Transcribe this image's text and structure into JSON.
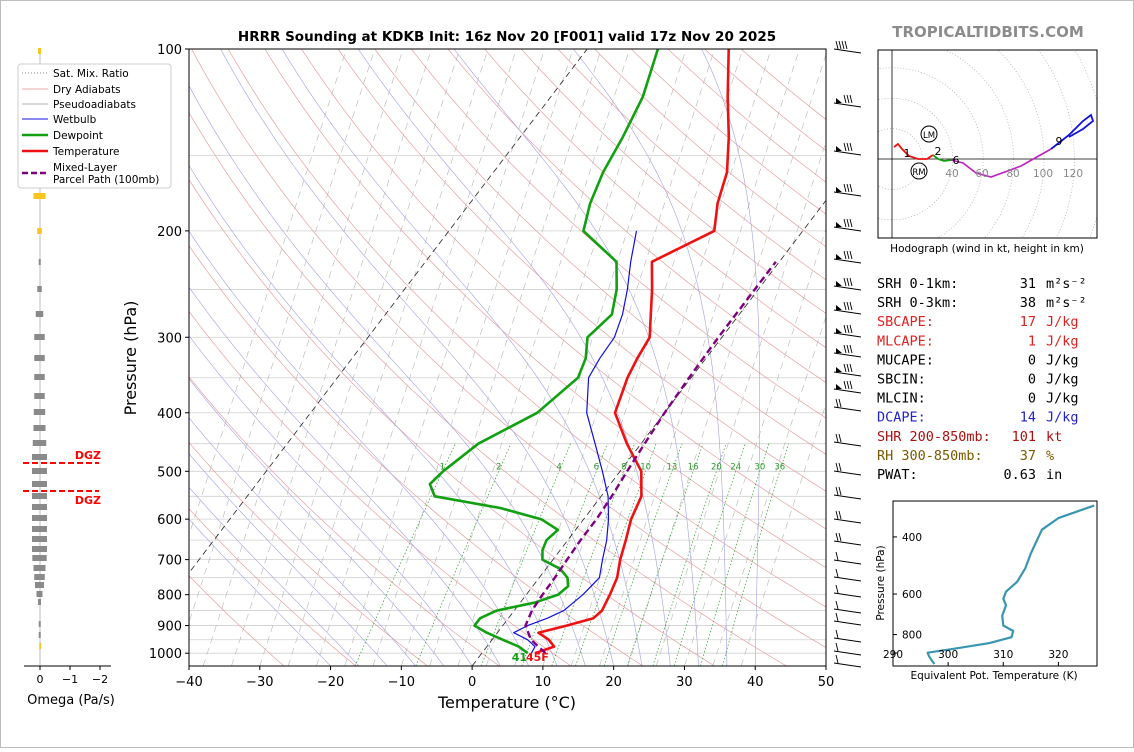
{
  "title": "HRRR Sounding at KDKB Init: 16z Nov 20 [F001] valid 17z Nov 20 2025",
  "watermark": "TROPICALTIDBITS.COM",
  "main_chart": {
    "xlabel": "Temperature (°C)",
    "ylabel": "Pressure (hPa)",
    "xlim": [
      -40,
      50
    ],
    "ylim": [
      1050,
      100
    ],
    "x_ticks": [
      "−40",
      "−30",
      "−20",
      "−10",
      "0",
      "10",
      "20",
      "30",
      "40",
      "50"
    ],
    "y_ticks": [
      "100",
      "200",
      "300",
      "400",
      "500",
      "600",
      "700",
      "800",
      "900",
      "1000"
    ],
    "mixing_ratio_labels": [
      "1",
      "2",
      "4",
      "6",
      "8",
      "10",
      "13",
      "16",
      "20",
      "24",
      "30",
      "36"
    ],
    "surface_labels": {
      "dewpoint": "41",
      "temperature": "45F"
    },
    "legend": [
      {
        "label": "Sat. Mix. Ratio",
        "color": "#888888",
        "style": "dotted"
      },
      {
        "label": "Dry Adiabats",
        "color": "#e08a8a",
        "style": "solid-thin"
      },
      {
        "label": "Pseudoadiabats",
        "color": "#999999",
        "style": "solid-thin"
      },
      {
        "label": "Wetbulb",
        "color": "#1010e0",
        "style": "solid"
      },
      {
        "label": "Dewpoint",
        "color": "#10a010",
        "style": "solid-bold"
      },
      {
        "label": "Temperature",
        "color": "#ee1111",
        "style": "solid-bold"
      },
      {
        "label": "Mixed-Layer\nParcel Path (100mb)",
        "color": "#800080",
        "style": "dashed"
      }
    ]
  },
  "chart_data": [
    {
      "type": "line",
      "title": "HRRR Sounding at KDKB Init: 16z Nov 20 [F001] valid 17z Nov 20 2025",
      "xlabel": "Temperature (°C)",
      "ylabel": "Pressure (hPa)",
      "xlim": [
        -40,
        50
      ],
      "ylim": [
        1050,
        100
      ],
      "y_scale": "log",
      "series": [
        {
          "name": "Temperature",
          "color": "#ee1111",
          "p": [
            1000,
            975,
            950,
            925,
            900,
            875,
            850,
            800,
            750,
            700,
            650,
            600,
            550,
            500,
            450,
            400,
            350,
            325,
            300,
            275,
            250,
            225,
            200,
            180,
            160,
            140,
            120,
            100
          ],
          "t": [
            7.5,
            9.5,
            8.0,
            5.8,
            9.0,
            12.0,
            12.4,
            11.8,
            11.0,
            9.5,
            8.2,
            6.7,
            5.7,
            3.0,
            -2.0,
            -7.0,
            -9.0,
            -9.7,
            -10.2,
            -12.5,
            -15.0,
            -18.0,
            -12.5,
            -15.0,
            -17.0,
            -20.5,
            -25.0,
            -30.0
          ]
        },
        {
          "name": "Dewpoint",
          "color": "#10a010",
          "p": [
            1000,
            975,
            950,
            925,
            900,
            875,
            850,
            825,
            800,
            775,
            750,
            725,
            700,
            675,
            650,
            625,
            600,
            575,
            550,
            525,
            500,
            450,
            400,
            350,
            325,
            300,
            275,
            250,
            225,
            200,
            180,
            160,
            140,
            120,
            100
          ],
          "t": [
            6.5,
            4.5,
            1.5,
            -1.5,
            -4.0,
            -4.0,
            -2.5,
            2.0,
            4.5,
            5.0,
            4.0,
            2.0,
            -1.5,
            -2.5,
            -3.0,
            -2.5,
            -6.0,
            -13.0,
            -23.5,
            -25.5,
            -25.0,
            -23.0,
            -18.0,
            -16.0,
            -17.0,
            -19.0,
            -18.0,
            -20.0,
            -23.0,
            -31.0,
            -33.0,
            -34.5,
            -35.5,
            -37.0,
            -40.0
          ]
        },
        {
          "name": "Wetbulb",
          "color": "#1010e0",
          "p": [
            1000,
            975,
            950,
            925,
            900,
            875,
            850,
            800,
            750,
            700,
            650,
            600,
            550,
            500,
            450,
            400,
            350,
            325,
            300,
            275,
            250,
            225,
            200
          ],
          "t": [
            7.0,
            6.8,
            5.0,
            2.3,
            3.5,
            5.5,
            7.0,
            8.0,
            8.5,
            7.0,
            5.5,
            3.5,
            1.0,
            -2.5,
            -6.5,
            -11.0,
            -14.5,
            -15.0,
            -15.2,
            -16.5,
            -18.5,
            -21.0,
            -23.5
          ]
        },
        {
          "name": "Mixed-Layer Parcel Path (100mb)",
          "color": "#800080",
          "p": [
            1000,
            950,
            900,
            850,
            800,
            750,
            700,
            650,
            600,
            550,
            500,
            450,
            400,
            350,
            300,
            250,
            225
          ],
          "t": [
            9.0,
            5.5,
            3.2,
            2.5,
            2.3,
            2.2,
            2.0,
            1.8,
            1.8,
            1.5,
            1.0,
            0.5,
            0.0,
            -0.3,
            -0.5,
            -0.5,
            -0.5
          ]
        }
      ],
      "wind_barbs_shown": true
    },
    {
      "type": "line",
      "title": "Hodograph (wind in kt, height in km)",
      "ring_labels": [
        "40",
        "60",
        "80",
        "100",
        "120"
      ],
      "point_labels": [
        "1",
        "2",
        "6",
        "9"
      ],
      "storm_motion_labels": [
        "LM",
        "RM"
      ]
    },
    {
      "type": "line",
      "title": "",
      "xlabel": "Equivalent Pot. Temperature (K)",
      "ylabel": "Pressure (hPa)",
      "x_ticks": [
        "290",
        "300",
        "310",
        "320"
      ],
      "y_ticks": [
        "400",
        "600",
        "800"
      ],
      "xlim": [
        290,
        327
      ],
      "ylim": [
        1000,
        310
      ],
      "series": [
        {
          "name": "",
          "color": "#3a96b0",
          "theta_e": [
            297.5,
            297.0,
            296.5,
            296.3,
            301.0,
            307.5,
            311.5,
            311.8,
            310.0,
            309.8,
            310.5,
            310.0,
            310.5,
            312.5,
            314.0,
            315.0,
            317.0,
            320.0,
            326.5
          ],
          "p": [
            985,
            960,
            930,
            910,
            885,
            850,
            815,
            780,
            750,
            700,
            650,
            620,
            590,
            550,
            500,
            450,
            380,
            350,
            320
          ]
        }
      ]
    },
    {
      "type": "bar",
      "title": "",
      "xlabel": "Omega (Pa/s)",
      "x_ticks": [
        "0",
        "−1",
        "−2"
      ],
      "dgz_label": "DGZ"
    }
  ],
  "params": [
    {
      "label": "SRH 0-1km:",
      "value": "31",
      "unit": "m²s⁻²",
      "color": "#000000"
    },
    {
      "label": "SRH 0-3km:",
      "value": "38",
      "unit": "m²s⁻²",
      "color": "#000000"
    },
    {
      "label": "SBCAPE:",
      "value": "17",
      "unit": "J/kg",
      "color": "#dd2222"
    },
    {
      "label": "MLCAPE:",
      "value": "1",
      "unit": "J/kg",
      "color": "#dd2222"
    },
    {
      "label": "MUCAPE:",
      "value": "0",
      "unit": "J/kg",
      "color": "#000000"
    },
    {
      "label": "SBCIN:",
      "value": "0",
      "unit": "J/kg",
      "color": "#000000"
    },
    {
      "label": "MLCIN:",
      "value": "0",
      "unit": "J/kg",
      "color": "#000000"
    },
    {
      "label": "DCAPE:",
      "value": "14",
      "unit": "J/kg",
      "color": "#2222cc"
    },
    {
      "label": "SHR 200-850mb:",
      "value": "101",
      "unit": "kt",
      "color": "#aa1111"
    },
    {
      "label": "RH 300-850mb:",
      "value": "37",
      "unit": "%",
      "color": "#7a5a00"
    },
    {
      "label": "PWAT:",
      "value": "0.63",
      "unit": "in",
      "color": "#000000"
    }
  ]
}
